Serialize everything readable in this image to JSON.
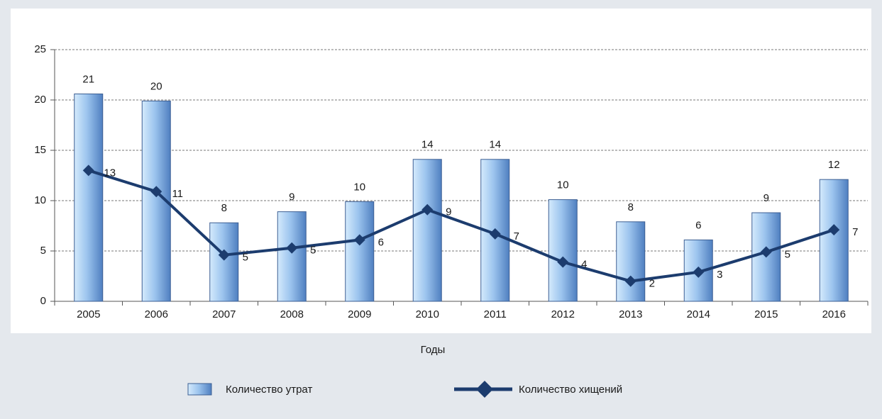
{
  "chart_data": {
    "type": "bar",
    "x_label": "Годы",
    "categories": [
      "2005",
      "2006",
      "2007",
      "2008",
      "2009",
      "2010",
      "2011",
      "2012",
      "2013",
      "2014",
      "2015",
      "2016"
    ],
    "series": [
      {
        "name": "Количество утрат",
        "type": "bar",
        "color": "#4f7fc0",
        "values": [
          20.6,
          19.9,
          7.8,
          8.9,
          9.9,
          14.1,
          14.1,
          10.1,
          7.9,
          6.1,
          8.8,
          12.1
        ],
        "value_labels": [
          "21",
          "20",
          "8",
          "9",
          "10",
          "14",
          "14",
          "10",
          "8",
          "6",
          "9",
          "12"
        ]
      },
      {
        "name": "Количество хищений",
        "type": "line",
        "color": "#1c3c6e",
        "values": [
          13.0,
          10.9,
          4.6,
          5.3,
          6.1,
          9.1,
          6.7,
          3.9,
          2.0,
          2.9,
          4.9,
          7.1
        ],
        "value_labels": [
          "13",
          "11",
          "5",
          "5",
          "6",
          "9",
          "7",
          "4",
          "2",
          "3",
          "5",
          "7"
        ]
      }
    ],
    "ylim": [
      0,
      25
    ],
    "yticks": [
      0,
      5,
      10,
      15,
      20,
      25
    ],
    "grid": true
  }
}
